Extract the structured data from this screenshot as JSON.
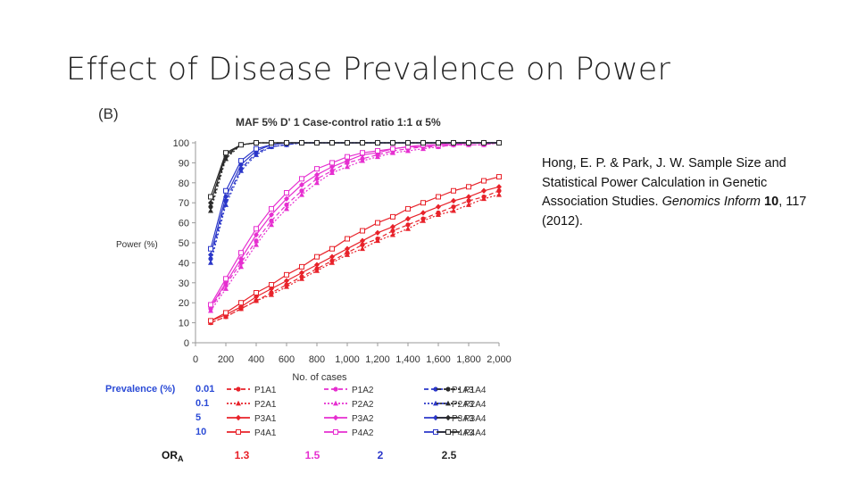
{
  "slide": {
    "title": "Effect of Disease Prevalence on Power"
  },
  "citation": {
    "authors": "Hong, E. P. & Park, J. W. Sample Size and Statistical Power Calculation in Genetic Association Studies.",
    "journal": "Genomics Inform",
    "volume": "10",
    "pages_year": ", 117 (2012)."
  },
  "chart_data": {
    "type": "line",
    "panel_label": "(B)",
    "title": "MAF 5%  D' 1  Case-control ratio 1:1  α 5%",
    "xlabel": "No. of cases",
    "ylabel": "Power (%)",
    "xlim": [
      0,
      2000
    ],
    "ylim": [
      0,
      100
    ],
    "x_ticks": [
      "0",
      "200",
      "400",
      "600",
      "800",
      "1,000",
      "1,200",
      "1,400",
      "1,600",
      "1,800",
      "2,000"
    ],
    "y_ticks": [
      "0",
      "10",
      "20",
      "30",
      "40",
      "50",
      "60",
      "70",
      "80",
      "90",
      "100"
    ],
    "grid": false,
    "x": [
      100,
      200,
      300,
      400,
      500,
      600,
      700,
      800,
      900,
      1000,
      1100,
      1200,
      1300,
      1400,
      1500,
      1600,
      1700,
      1800,
      1900,
      2000
    ],
    "colors": {
      "1.3": "#e8222a",
      "1.5": "#e62fd0",
      "2": "#2b37c9",
      "2.5": "#2a2a2a"
    },
    "series": [
      {
        "name": "P1A1",
        "or": "1.3",
        "prev": "0.01",
        "values": [
          10,
          13,
          17,
          21,
          25,
          29,
          33,
          37,
          41,
          45,
          49,
          52,
          56,
          59,
          62,
          65,
          68,
          71,
          73,
          76
        ]
      },
      {
        "name": "P2A1",
        "or": "1.3",
        "prev": "0.1",
        "values": [
          10,
          13,
          17,
          21,
          24,
          28,
          32,
          36,
          40,
          44,
          47,
          51,
          54,
          57,
          61,
          64,
          66,
          69,
          72,
          74
        ]
      },
      {
        "name": "P3A1",
        "or": "1.3",
        "prev": "5",
        "values": [
          11,
          14,
          18,
          23,
          27,
          31,
          35,
          39,
          43,
          47,
          51,
          55,
          58,
          62,
          65,
          68,
          71,
          73,
          76,
          78
        ]
      },
      {
        "name": "P4A1",
        "or": "1.3",
        "prev": "10",
        "values": [
          11,
          15,
          20,
          25,
          29,
          34,
          38,
          43,
          47,
          52,
          56,
          60,
          63,
          67,
          70,
          73,
          76,
          78,
          81,
          83
        ]
      },
      {
        "name": "P1A2",
        "or": "1.5",
        "prev": "0.01",
        "values": [
          17,
          29,
          40,
          51,
          61,
          69,
          76,
          82,
          86,
          90,
          92,
          94,
          96,
          97,
          98,
          98,
          99,
          99,
          99,
          100
        ]
      },
      {
        "name": "P2A2",
        "or": "1.5",
        "prev": "0.1",
        "values": [
          16,
          27,
          38,
          49,
          59,
          67,
          74,
          80,
          85,
          88,
          91,
          93,
          95,
          96,
          97,
          98,
          99,
          99,
          99,
          100
        ]
      },
      {
        "name": "P3A2",
        "or": "1.5",
        "prev": "5",
        "values": [
          18,
          30,
          42,
          54,
          64,
          72,
          79,
          84,
          88,
          91,
          94,
          95,
          97,
          98,
          98,
          99,
          99,
          100,
          100,
          100
        ]
      },
      {
        "name": "P4A2",
        "or": "1.5",
        "prev": "10",
        "values": [
          19,
          32,
          45,
          57,
          67,
          75,
          82,
          87,
          90,
          93,
          95,
          96,
          97,
          98,
          99,
          99,
          100,
          100,
          100,
          100
        ]
      },
      {
        "name": "P1A3",
        "or": "2",
        "prev": "0.01",
        "values": [
          42,
          71,
          87,
          95,
          98,
          99,
          100,
          100,
          100,
          100,
          100,
          100,
          100,
          100,
          100,
          100,
          100,
          100,
          100,
          100
        ]
      },
      {
        "name": "P2A3",
        "or": "2",
        "prev": "0.1",
        "values": [
          40,
          69,
          86,
          94,
          98,
          99,
          100,
          100,
          100,
          100,
          100,
          100,
          100,
          100,
          100,
          100,
          100,
          100,
          100,
          100
        ]
      },
      {
        "name": "P3A3",
        "or": "2",
        "prev": "5",
        "values": [
          44,
          73,
          89,
          96,
          99,
          100,
          100,
          100,
          100,
          100,
          100,
          100,
          100,
          100,
          100,
          100,
          100,
          100,
          100,
          100
        ]
      },
      {
        "name": "P4A3",
        "or": "2",
        "prev": "10",
        "values": [
          47,
          76,
          91,
          97,
          99,
          100,
          100,
          100,
          100,
          100,
          100,
          100,
          100,
          100,
          100,
          100,
          100,
          100,
          100,
          100
        ]
      },
      {
        "name": "P1A4",
        "or": "2.5",
        "prev": "0.01",
        "values": [
          68,
          93,
          99,
          100,
          100,
          100,
          100,
          100,
          100,
          100,
          100,
          100,
          100,
          100,
          100,
          100,
          100,
          100,
          100,
          100
        ]
      },
      {
        "name": "P2A4",
        "or": "2.5",
        "prev": "0.1",
        "values": [
          66,
          92,
          99,
          100,
          100,
          100,
          100,
          100,
          100,
          100,
          100,
          100,
          100,
          100,
          100,
          100,
          100,
          100,
          100,
          100
        ]
      },
      {
        "name": "P3A4",
        "or": "2.5",
        "prev": "5",
        "values": [
          70,
          94,
          99,
          100,
          100,
          100,
          100,
          100,
          100,
          100,
          100,
          100,
          100,
          100,
          100,
          100,
          100,
          100,
          100,
          100
        ]
      },
      {
        "name": "P4A4",
        "or": "2.5",
        "prev": "10",
        "values": [
          73,
          95,
          99,
          100,
          100,
          100,
          100,
          100,
          100,
          100,
          100,
          100,
          100,
          100,
          100,
          100,
          100,
          100,
          100,
          100
        ]
      }
    ],
    "legend": {
      "prevalence_label": "Prevalence (%)",
      "prevalence_values": [
        "0.01",
        "0.1",
        "5",
        "10"
      ],
      "or_label": "OR",
      "or_subscript": "A",
      "or_values": [
        "1.3",
        "1.5",
        "2",
        "2.5"
      ]
    }
  }
}
